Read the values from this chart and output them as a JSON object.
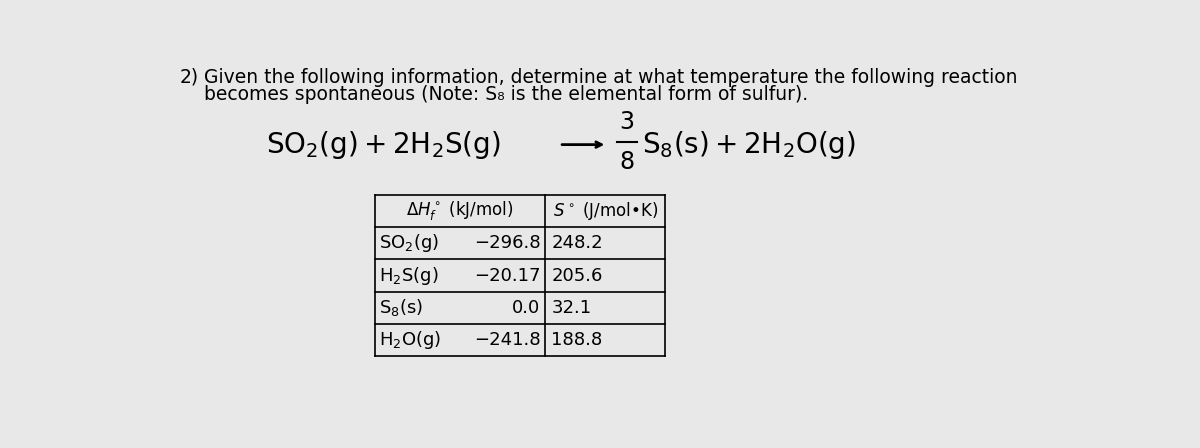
{
  "background_color": "#e8e8e8",
  "problem_number": "2)",
  "question_line1": "Given the following information, determine at what temperature the following reaction",
  "question_line2": "becomes spontaneous (Note: S₈ is the elemental form of sulfur).",
  "table_col1": [
    "SO₂(ɡ) −296.8",
    "H₂S(ɡ) −20.17",
    "S₈(s)   0.0",
    "H₂O(ɡ) −241.8"
  ],
  "table_col2": [
    "248.2",
    "205.6",
    "32.1",
    "188.8"
  ],
  "font_size_question": 13.5,
  "font_size_equation": 20,
  "font_size_table": 13
}
